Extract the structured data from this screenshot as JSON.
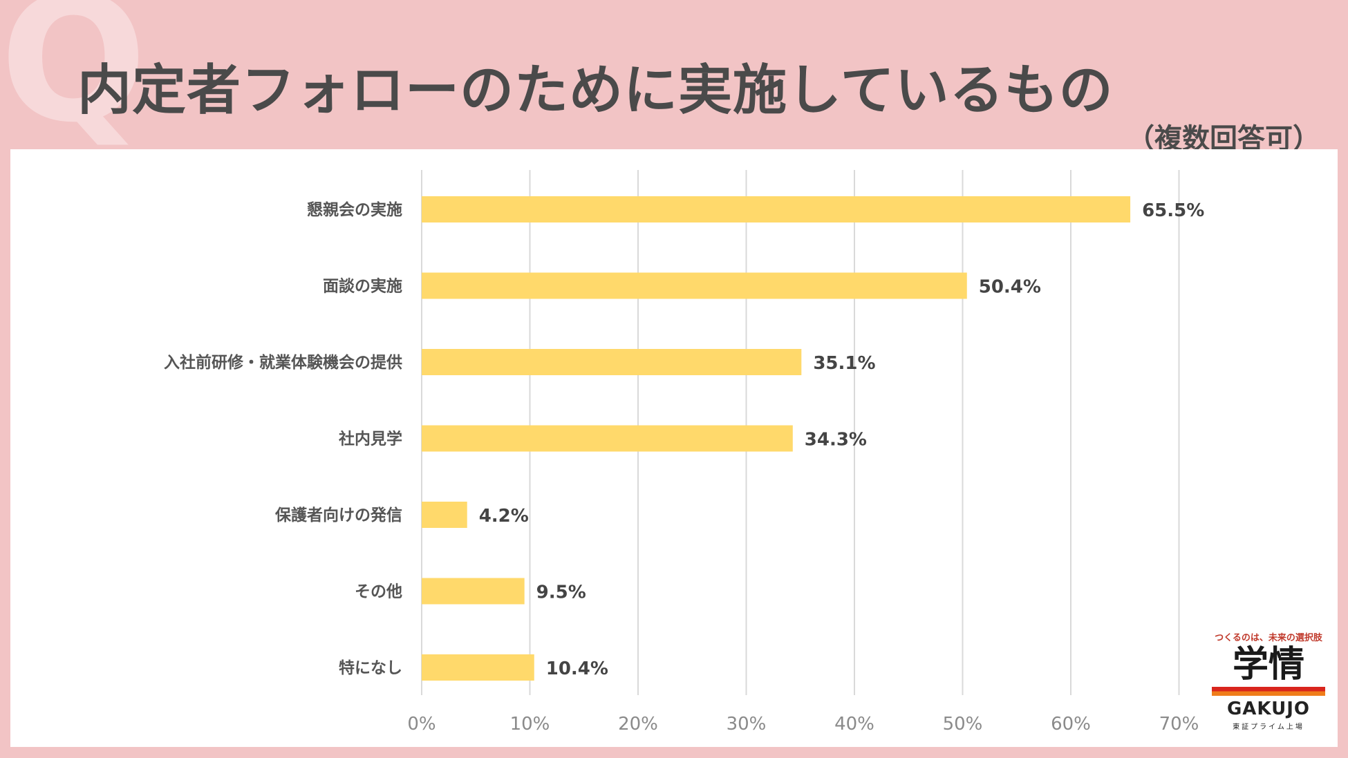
{
  "decor": {
    "q_letter": "Q"
  },
  "header": {
    "title": "内定者フォローのために実施しているもの",
    "subtitle": "（複数回答可）"
  },
  "colors": {
    "bar": "#ffd96b",
    "grid": "#d9d9d9",
    "background": "#f2c4c5"
  },
  "chart_data": {
    "type": "bar",
    "orientation": "horizontal",
    "title": "内定者フォローのために実施しているもの",
    "subtitle": "（複数回答可）",
    "categories": [
      "懇親会の実施",
      "面談の実施",
      "入社前研修・就業体験機会の提供",
      "社内見学",
      "保護者向けの発信",
      "その他",
      "特になし"
    ],
    "values": [
      65.5,
      50.4,
      35.1,
      34.3,
      4.2,
      9.5,
      10.4
    ],
    "value_labels": [
      "65.5%",
      "50.4%",
      "35.1%",
      "34.3%",
      "4.2%",
      "9.5%",
      "10.4%"
    ],
    "xlim": [
      0,
      70
    ],
    "x_ticks": [
      0,
      10,
      20,
      30,
      40,
      50,
      60,
      70
    ],
    "x_tick_labels": [
      "0%",
      "10%",
      "20%",
      "30%",
      "40%",
      "50%",
      "60%",
      "70%"
    ],
    "grid": true
  },
  "logo": {
    "tagline": "つくるのは、未来の選択肢",
    "name_jp": "学情",
    "name_en": "GAKUJO",
    "listing": "東証プライム上場"
  }
}
